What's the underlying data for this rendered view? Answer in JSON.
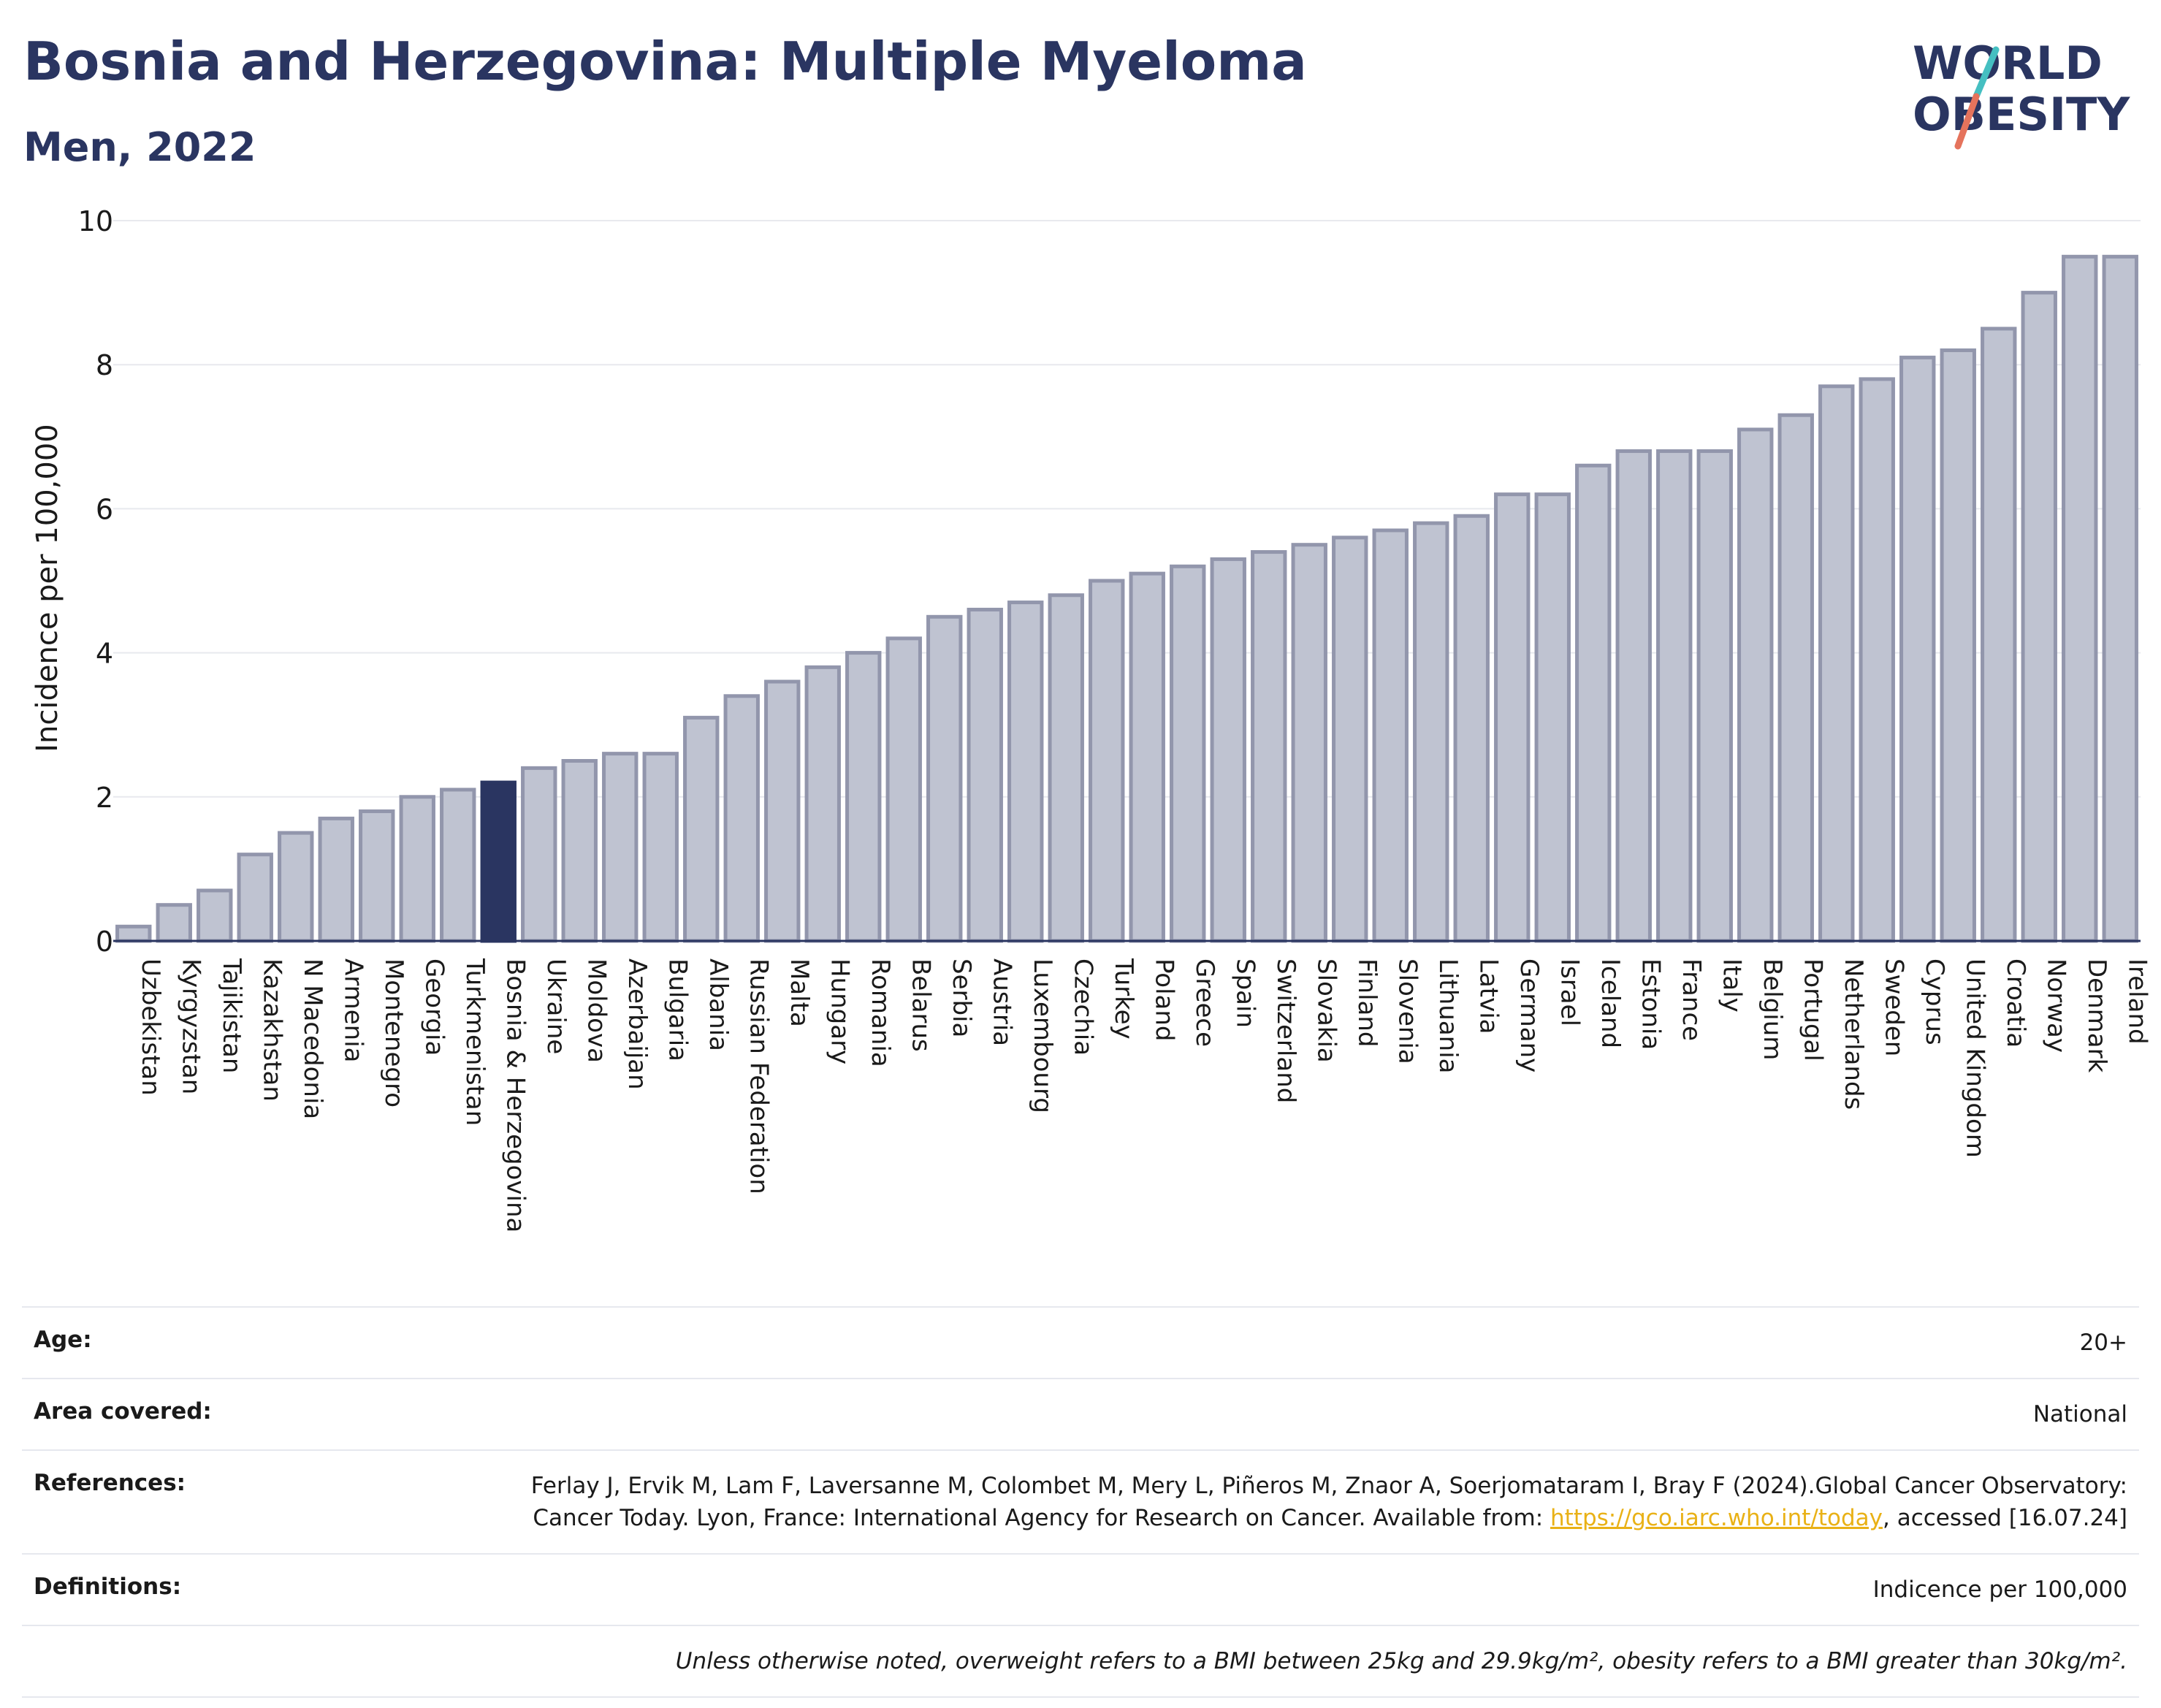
{
  "title": "Bosnia and Herzegovina: Multiple Myeloma",
  "subtitle": "Men, 2022",
  "logo": {
    "line1": "WORLD",
    "line2": "OBESITY",
    "accent_colors": [
      "#45bfc1",
      "#e5735c"
    ]
  },
  "colors": {
    "highlight": "#2a3561",
    "bar": "#bfc3d1",
    "bar_stroke": "#9296ac",
    "grid": "#e8e9ee",
    "text": "#2a3561"
  },
  "chart_data": {
    "type": "bar",
    "ylabel": "Incidence per 100,000",
    "ylim": [
      0,
      10
    ],
    "yticks": [
      0,
      2,
      4,
      6,
      8,
      10
    ],
    "highlight": "Bosnia & Herzegovina",
    "categories": [
      "Uzbekistan",
      "Kyrgyzstan",
      "Tajikistan",
      "Kazakhstan",
      "N Macedonia",
      "Armenia",
      "Montenegro",
      "Georgia",
      "Turkmenistan",
      "Bosnia & Herzegovina",
      "Ukraine",
      "Moldova",
      "Azerbaijan",
      "Bulgaria",
      "Albania",
      "Russian Federation",
      "Malta",
      "Hungary",
      "Romania",
      "Belarus",
      "Serbia",
      "Austria",
      "Luxembourg",
      "Czechia",
      "Turkey",
      "Poland",
      "Greece",
      "Spain",
      "Switzerland",
      "Slovakia",
      "Finland",
      "Slovenia",
      "Lithuania",
      "Latvia",
      "Germany",
      "Israel",
      "Iceland",
      "Estonia",
      "France",
      "Italy",
      "Belgium",
      "Portugal",
      "Netherlands",
      "Sweden",
      "Cyprus",
      "United Kingdom",
      "Croatia",
      "Norway",
      "Denmark",
      "Ireland"
    ],
    "values": [
      0.2,
      0.5,
      0.7,
      1.2,
      1.5,
      1.7,
      1.8,
      2.0,
      2.1,
      2.2,
      2.4,
      2.5,
      2.6,
      2.6,
      3.1,
      3.4,
      3.6,
      3.8,
      4.0,
      4.2,
      4.5,
      4.6,
      4.7,
      4.8,
      5.0,
      5.1,
      5.2,
      5.3,
      5.4,
      5.5,
      5.6,
      5.7,
      5.8,
      5.9,
      6.2,
      6.2,
      6.6,
      6.8,
      6.8,
      6.8,
      7.1,
      7.3,
      7.7,
      7.8,
      8.1,
      8.2,
      8.5,
      9.0,
      9.5,
      9.5
    ]
  },
  "info": {
    "age_label": "Age:",
    "age_value": "20+",
    "area_label": "Area covered:",
    "area_value": "National",
    "references_label": "References:",
    "references_text": "Ferlay J, Ervik M, Lam F, Laversanne M, Colombet M, Mery L, Piñeros M, Znaor A, Soerjomataram I, Bray F (2024).Global Cancer Observatory: Cancer Today. Lyon, France: International Agency for Research on Cancer. Available from:",
    "references_link": "https://gco.iarc.who.int/today",
    "references_suffix": ", accessed [16.07.24]",
    "definitions_label": "Definitions:",
    "definitions_value": "Indicence per 100,000",
    "note": "Unless otherwise noted, overweight refers to a BMI between 25kg and 29.9kg/m², obesity refers to a BMI greater than 30kg/m²."
  }
}
